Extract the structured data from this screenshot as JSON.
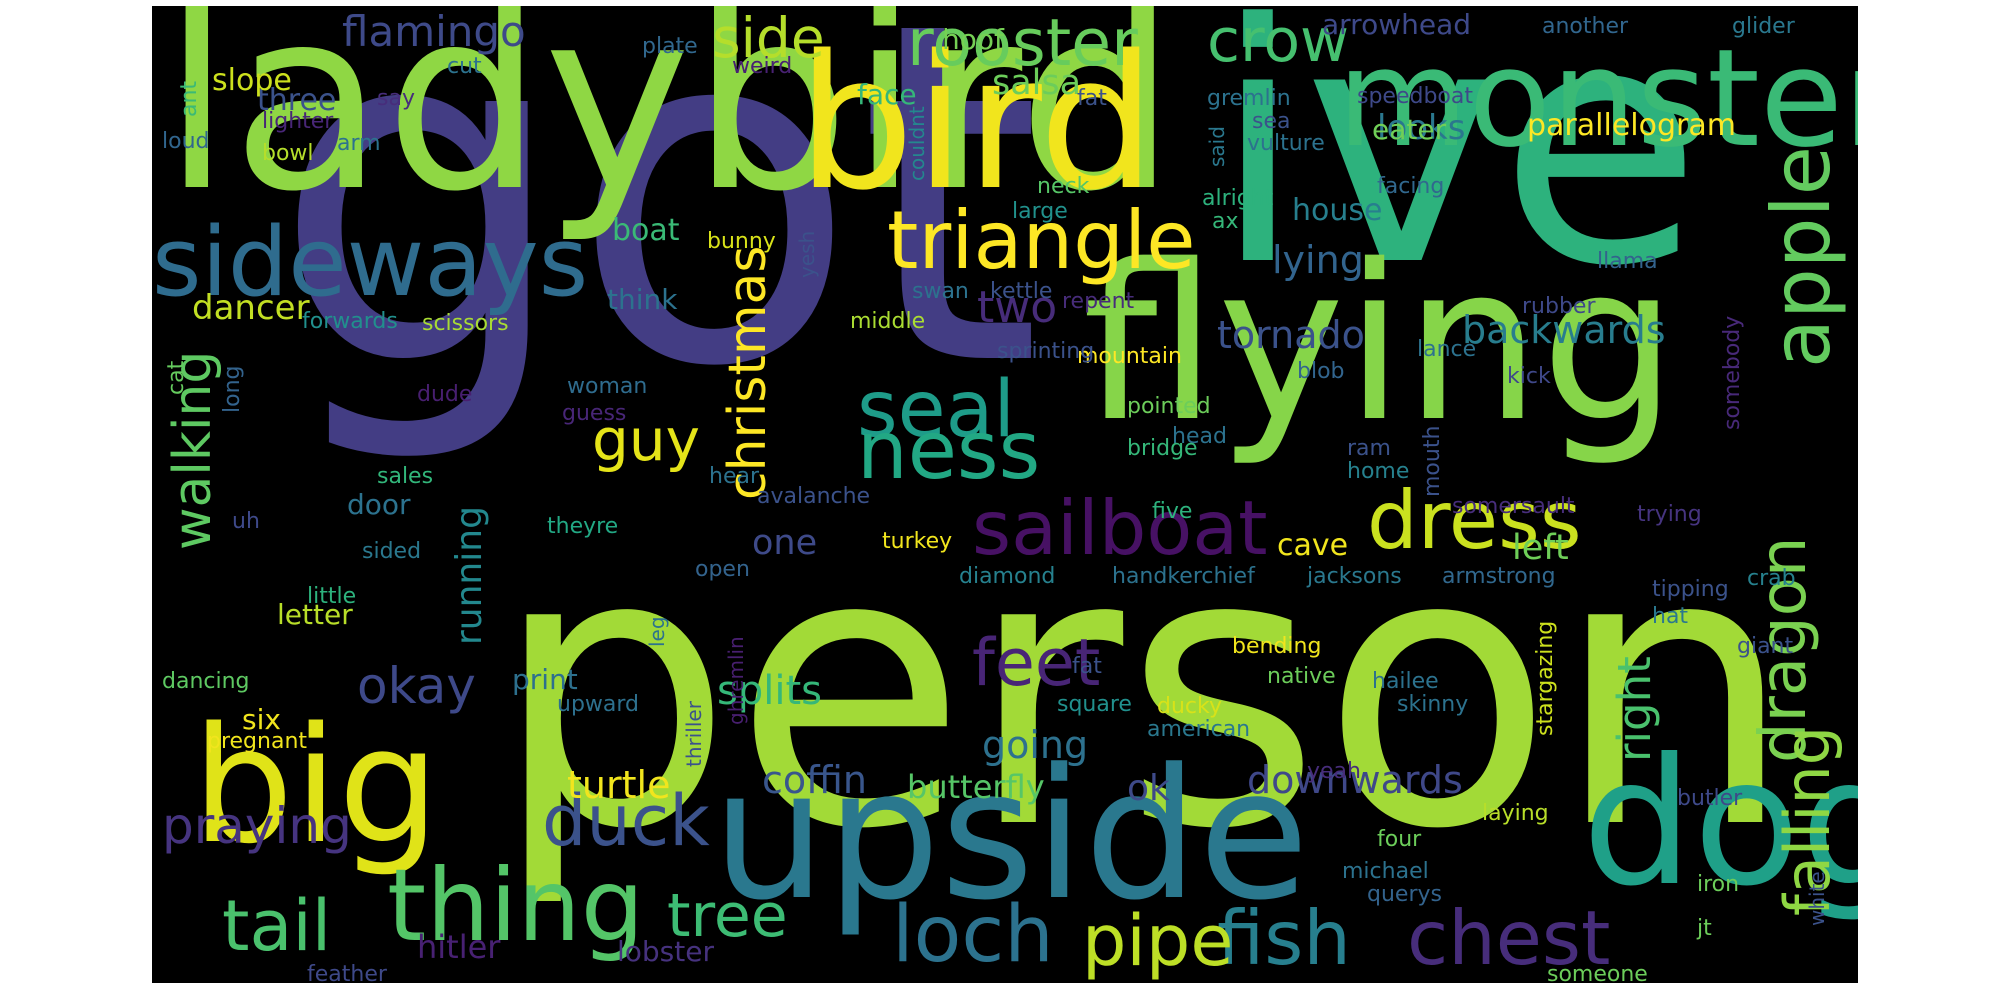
{
  "cloud": {
    "words": [
      {
        "text": "got",
        "color": "#433d84",
        "rotate": false
      },
      {
        "text": "person",
        "color": "#a2da37",
        "rotate": false
      },
      {
        "text": "ive",
        "color": "#2db27d",
        "rotate": false
      },
      {
        "text": "ladybird",
        "color": "#8fd744",
        "rotate": false
      },
      {
        "text": "flying",
        "color": "#86d549",
        "rotate": false
      },
      {
        "text": "upside",
        "color": "#2a788e",
        "rotate": false
      },
      {
        "text": "dog",
        "color": "#1fa088",
        "rotate": false
      },
      {
        "text": "bird",
        "color": "#f1e51d",
        "rotate": false
      },
      {
        "text": "monster",
        "color": "#3aba76",
        "rotate": false
      },
      {
        "text": "big",
        "color": "#e0e318",
        "rotate": false
      },
      {
        "text": "thing",
        "color": "#54c568",
        "rotate": false
      },
      {
        "text": "sideways",
        "color": "#2f6c8e",
        "rotate": false
      },
      {
        "text": "triangle",
        "color": "#fde725",
        "rotate": false
      },
      {
        "text": "rooster",
        "color": "#67cc5c",
        "rotate": false
      },
      {
        "text": "crow",
        "color": "#46c06f",
        "rotate": false
      },
      {
        "text": "seal",
        "color": "#1e9c89",
        "rotate": false
      },
      {
        "text": "ness",
        "color": "#22a884",
        "rotate": false
      },
      {
        "text": "sailboat",
        "color": "#471164",
        "rotate": false
      },
      {
        "text": "dress",
        "color": "#cae11f",
        "rotate": false
      },
      {
        "text": "apple",
        "color": "#63cb5f",
        "rotate": true
      },
      {
        "text": "dragon",
        "color": "#7ad151",
        "rotate": true
      },
      {
        "text": "falling",
        "color": "#8fd744",
        "rotate": true
      },
      {
        "text": "chest",
        "color": "#472d7b",
        "rotate": false
      },
      {
        "text": "fish",
        "color": "#277f8e",
        "rotate": false
      },
      {
        "text": "pipe",
        "color": "#bddf26",
        "rotate": false
      },
      {
        "text": "loch",
        "color": "#2c728e",
        "rotate": false
      },
      {
        "text": "tail",
        "color": "#4ac16d",
        "rotate": false
      },
      {
        "text": "duck",
        "color": "#3b528b",
        "rotate": false
      },
      {
        "text": "tree",
        "color": "#3dbc74",
        "rotate": false
      },
      {
        "text": "feet",
        "color": "#482576",
        "rotate": false
      },
      {
        "text": "guy",
        "color": "#e5e419",
        "rotate": false
      },
      {
        "text": "christmas",
        "color": "#fde725",
        "rotate": true
      },
      {
        "text": "walking",
        "color": "#5ec962",
        "rotate": true
      },
      {
        "text": "praying",
        "color": "#463480",
        "rotate": false
      },
      {
        "text": "okay",
        "color": "#3e4989",
        "rotate": false
      },
      {
        "text": "right",
        "color": "#4ac16d",
        "rotate": true
      },
      {
        "text": "splits",
        "color": "#35b779",
        "rotate": false
      },
      {
        "text": "two",
        "color": "#472c7a",
        "rotate": false
      },
      {
        "text": "flamingo",
        "color": "#3e4a89",
        "rotate": false
      },
      {
        "text": "side",
        "color": "#b5de2b",
        "rotate": false
      },
      {
        "text": "tornado",
        "color": "#3b528b",
        "rotate": false
      },
      {
        "text": "backwards",
        "color": "#287d8e",
        "rotate": false
      },
      {
        "text": "lying",
        "color": "#32648e",
        "rotate": false
      },
      {
        "text": "salsa",
        "color": "#6ccd5a",
        "rotate": false
      },
      {
        "text": "looks",
        "color": "#2a778e",
        "rotate": false
      },
      {
        "text": "house",
        "color": "#277f8e",
        "rotate": false
      },
      {
        "text": "one",
        "color": "#3e4a89",
        "rotate": false
      },
      {
        "text": "left",
        "color": "#6ece58",
        "rotate": false
      },
      {
        "text": "running",
        "color": "#23888e",
        "rotate": true
      },
      {
        "text": "coffin",
        "color": "#39568c",
        "rotate": false
      },
      {
        "text": "butterfly",
        "color": "#56c667",
        "rotate": false
      },
      {
        "text": "turtle",
        "color": "#f1e51d",
        "rotate": false
      },
      {
        "text": "downwards",
        "color": "#3f4889",
        "rotate": false
      },
      {
        "text": "going",
        "color": "#2d718e",
        "rotate": false
      },
      {
        "text": "ok",
        "color": "#3e4a89",
        "rotate": false
      },
      {
        "text": "hitler",
        "color": "#482173",
        "rotate": false
      },
      {
        "text": "lobster",
        "color": "#46327e",
        "rotate": false
      },
      {
        "text": "arrowhead",
        "color": "#3e4989",
        "rotate": false
      },
      {
        "text": "parallelogram",
        "color": "#fde725",
        "rotate": false
      },
      {
        "text": "dancer",
        "color": "#c2df23",
        "rotate": false
      },
      {
        "text": "boat",
        "color": "#3aba76",
        "rotate": false
      },
      {
        "text": "think",
        "color": "#2c728e",
        "rotate": false
      },
      {
        "text": "face",
        "color": "#35b779",
        "rotate": false
      },
      {
        "text": "three",
        "color": "#3b528b",
        "rotate": false
      },
      {
        "text": "slope",
        "color": "#cde11d",
        "rotate": false
      },
      {
        "text": "hoof",
        "color": "#75d054",
        "rotate": false
      },
      {
        "text": "eater",
        "color": "#70cf57",
        "rotate": false
      },
      {
        "text": "cave",
        "color": "#f1e51d",
        "rotate": false
      },
      {
        "text": "letter",
        "color": "#b8de29",
        "rotate": false
      },
      {
        "text": "door",
        "color": "#2c728e",
        "rotate": false
      },
      {
        "text": "six",
        "color": "#f1e51d",
        "rotate": false
      },
      {
        "text": "print",
        "color": "#2d708e",
        "rotate": false
      },
      {
        "text": "speedboat",
        "color": "#3e4989",
        "rotate": false
      },
      {
        "text": "mountain",
        "color": "#fde725",
        "rotate": false
      },
      {
        "text": "pregnant",
        "color": "#f1e51d",
        "rotate": false
      },
      {
        "text": "dancing",
        "color": "#5ec962",
        "rotate": false
      },
      {
        "text": "another",
        "color": "#31668e",
        "rotate": false
      },
      {
        "text": "glider",
        "color": "#2a788e",
        "rotate": false
      },
      {
        "text": "plate",
        "color": "#31688e",
        "rotate": false
      },
      {
        "text": "cut",
        "color": "#2c728e",
        "rotate": false
      },
      {
        "text": "weird",
        "color": "#482173",
        "rotate": false
      },
      {
        "text": "fat",
        "color": "#3b528b",
        "rotate": false
      },
      {
        "text": "gremlin",
        "color": "#2c728e",
        "rotate": false
      },
      {
        "text": "say",
        "color": "#472d7b",
        "rotate": false
      },
      {
        "text": "lighter",
        "color": "#482677",
        "rotate": false
      },
      {
        "text": "arm",
        "color": "#2c728e",
        "rotate": false
      },
      {
        "text": "sea",
        "color": "#3b528b",
        "rotate": false
      },
      {
        "text": "vulture",
        "color": "#2c728e",
        "rotate": false
      },
      {
        "text": "ant",
        "color": "#3aba76",
        "rotate": true
      },
      {
        "text": "loud",
        "color": "#31668e",
        "rotate": false
      },
      {
        "text": "bowl",
        "color": "#b5de2b",
        "rotate": false
      },
      {
        "text": "couldnt",
        "color": "#24878e",
        "rotate": true
      },
      {
        "text": "said",
        "color": "#2a788e",
        "rotate": true
      },
      {
        "text": "neck",
        "color": "#56c667",
        "rotate": false
      },
      {
        "text": "large",
        "color": "#21918c",
        "rotate": false
      },
      {
        "text": "alright",
        "color": "#2db27d",
        "rotate": false
      },
      {
        "text": "facing",
        "color": "#31688e",
        "rotate": false
      },
      {
        "text": "ax",
        "color": "#35b779",
        "rotate": false
      },
      {
        "text": "bunny",
        "color": "#d8e219",
        "rotate": false
      },
      {
        "text": "yesh",
        "color": "#3b528b",
        "rotate": true
      },
      {
        "text": "swan",
        "color": "#2c728e",
        "rotate": false
      },
      {
        "text": "kettle",
        "color": "#3b528b",
        "rotate": false
      },
      {
        "text": "repent",
        "color": "#472c7a",
        "rotate": false
      },
      {
        "text": "llama",
        "color": "#33638d",
        "rotate": false
      },
      {
        "text": "rubber",
        "color": "#3e4989",
        "rotate": false
      },
      {
        "text": "forwards",
        "color": "#21908d",
        "rotate": false
      },
      {
        "text": "scissors",
        "color": "#a8db34",
        "rotate": false
      },
      {
        "text": "middle",
        "color": "#aadc32",
        "rotate": false
      },
      {
        "text": "sprinting",
        "color": "#3b528b",
        "rotate": false
      },
      {
        "text": "lance",
        "color": "#2c728e",
        "rotate": false
      },
      {
        "text": "blob",
        "color": "#32658e",
        "rotate": false
      },
      {
        "text": "kick",
        "color": "#3f4889",
        "rotate": false
      },
      {
        "text": "somebody",
        "color": "#482979",
        "rotate": true
      },
      {
        "text": "cat",
        "color": "#65cb5e",
        "rotate": true
      },
      {
        "text": "long",
        "color": "#33638d",
        "rotate": true
      },
      {
        "text": "dude",
        "color": "#481f70",
        "rotate": false
      },
      {
        "text": "woman",
        "color": "#2f6c8e",
        "rotate": false
      },
      {
        "text": "guess",
        "color": "#482677",
        "rotate": false
      },
      {
        "text": "pointed",
        "color": "#6ccd5a",
        "rotate": false
      },
      {
        "text": "head",
        "color": "#2c728e",
        "rotate": false
      },
      {
        "text": "mouth",
        "color": "#3b528b",
        "rotate": true
      },
      {
        "text": "bridge",
        "color": "#35b779",
        "rotate": false
      },
      {
        "text": "ram",
        "color": "#3b528b",
        "rotate": false
      },
      {
        "text": "home",
        "color": "#26818e",
        "rotate": false
      },
      {
        "text": "sales",
        "color": "#32b67a",
        "rotate": false
      },
      {
        "text": "hear",
        "color": "#2c728e",
        "rotate": false
      },
      {
        "text": "avalanche",
        "color": "#3b528b",
        "rotate": false
      },
      {
        "text": "somersault",
        "color": "#472d7b",
        "rotate": false
      },
      {
        "text": "trying",
        "color": "#463480",
        "rotate": false
      },
      {
        "text": "uh",
        "color": "#3e4989",
        "rotate": false
      },
      {
        "text": "theyre",
        "color": "#22a884",
        "rotate": false
      },
      {
        "text": "sided",
        "color": "#2a788e",
        "rotate": false
      },
      {
        "text": "five",
        "color": "#2db27d",
        "rotate": false
      },
      {
        "text": "turkey",
        "color": "#f1e51d",
        "rotate": false
      },
      {
        "text": "open",
        "color": "#33638d",
        "rotate": false
      },
      {
        "text": "diamond",
        "color": "#26818e",
        "rotate": false
      },
      {
        "text": "handkerchief",
        "color": "#2c728e",
        "rotate": false
      },
      {
        "text": "jacksons",
        "color": "#2a788e",
        "rotate": false
      },
      {
        "text": "armstrong",
        "color": "#31688e",
        "rotate": false
      },
      {
        "text": "tipping",
        "color": "#3b528b",
        "rotate": false
      },
      {
        "text": "crab",
        "color": "#26818e",
        "rotate": false
      },
      {
        "text": "hat",
        "color": "#2a788e",
        "rotate": false
      },
      {
        "text": "little",
        "color": "#2db27d",
        "rotate": false
      },
      {
        "text": "leg",
        "color": "#2c728e",
        "rotate": true
      },
      {
        "text": "giant",
        "color": "#3b528b",
        "rotate": false
      },
      {
        "text": "bending",
        "color": "#f1e51d",
        "rotate": false
      },
      {
        "text": "native",
        "color": "#6ccd5a",
        "rotate": false
      },
      {
        "text": "stargazing",
        "color": "#cde11d",
        "rotate": true
      },
      {
        "text": "fat",
        "color": "#3b528b",
        "rotate": false
      },
      {
        "text": "ghremlin",
        "color": "#481f70",
        "rotate": true
      },
      {
        "text": "hailee",
        "color": "#2c728e",
        "rotate": false
      },
      {
        "text": "skinny",
        "color": "#2c728e",
        "rotate": false
      },
      {
        "text": "upward",
        "color": "#2d708e",
        "rotate": false
      },
      {
        "text": "square",
        "color": "#21908d",
        "rotate": false
      },
      {
        "text": "ducky",
        "color": "#d8e219",
        "rotate": false
      },
      {
        "text": "thriller",
        "color": "#3b528b",
        "rotate": true
      },
      {
        "text": "american",
        "color": "#2a788e",
        "rotate": false
      },
      {
        "text": "yeah",
        "color": "#472d7b",
        "rotate": false
      },
      {
        "text": "laying",
        "color": "#b8de29",
        "rotate": false
      },
      {
        "text": "butler",
        "color": "#3e4989",
        "rotate": false
      },
      {
        "text": "four",
        "color": "#6ccd5a",
        "rotate": false
      },
      {
        "text": "michael",
        "color": "#2c728e",
        "rotate": false
      },
      {
        "text": "querys",
        "color": "#33638d",
        "rotate": false
      },
      {
        "text": "iron",
        "color": "#6ccd5a",
        "rotate": false
      },
      {
        "text": "white",
        "color": "#3b528b",
        "rotate": true
      },
      {
        "text": "jt",
        "color": "#6ccd5a",
        "rotate": false
      },
      {
        "text": "someone",
        "color": "#6ccd5a",
        "rotate": false
      },
      {
        "text": "feather",
        "color": "#3e4989",
        "rotate": false
      }
    ]
  }
}
